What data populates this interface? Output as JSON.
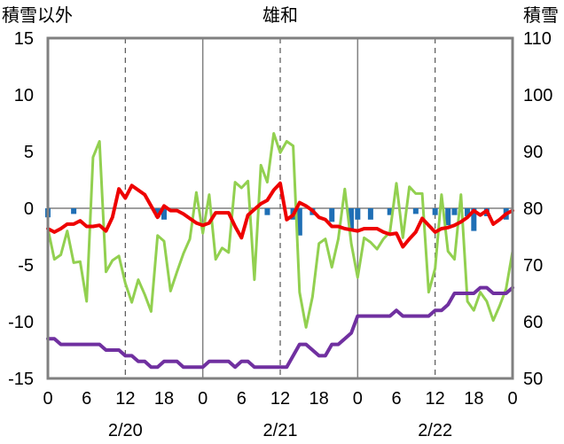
{
  "chart_data": {
    "type": "line",
    "title": "雄和",
    "ylabel": "積雪以外",
    "y2label": "積雪",
    "ylim": [
      -15,
      15
    ],
    "y2lim": [
      50,
      110
    ],
    "yticks": [
      15,
      10,
      5,
      0,
      -5,
      -10,
      -15
    ],
    "y2ticks": [
      110,
      100,
      90,
      80,
      70,
      60,
      50
    ],
    "x_tick_labels": [
      "0",
      "6",
      "12",
      "18",
      "0",
      "6",
      "12",
      "18",
      "0",
      "6",
      "12",
      "18",
      "0"
    ],
    "date_labels": [
      "2/20",
      "2/21",
      "2/22"
    ],
    "grid": "vertical",
    "frame_color": "#808080",
    "series": [
      {
        "type": "bar",
        "axis": "left",
        "color": "#1f6fb5",
        "values": [
          -0.8,
          0,
          0,
          0,
          -0.5,
          0,
          0,
          0,
          0,
          0,
          0,
          0,
          0,
          0,
          0,
          0,
          0,
          -0.8,
          -1.0,
          0,
          0,
          0,
          0,
          0,
          0,
          0,
          0,
          0,
          0,
          0,
          0,
          0,
          0,
          0,
          -0.6,
          0,
          0,
          0,
          -1.0,
          -2.4,
          0,
          -0.6,
          0,
          0,
          -1.2,
          0,
          0,
          -1.8,
          -1.0,
          0,
          -1.0,
          0,
          0,
          -0.6,
          0,
          0,
          0,
          -0.5,
          0,
          0,
          -0.6,
          0,
          -1.5,
          -0.6,
          0,
          -0.7,
          -2.0,
          0,
          -0.7,
          0,
          0,
          -1.0,
          0
        ]
      },
      {
        "type": "line",
        "axis": "left",
        "color": "#92d050",
        "values": [
          -1.8,
          -4.5,
          -4.1,
          -2.0,
          -4.8,
          -4.7,
          -8.2,
          4.5,
          5.9,
          -5.6,
          -4.6,
          -4.2,
          -6.6,
          -8.3,
          -6.3,
          -7.6,
          -9.1,
          -2.4,
          -2.9,
          -7.3,
          -5.6,
          -4.0,
          -2.7,
          1.4,
          -2.2,
          1.2,
          -4.5,
          -3.5,
          -3.9,
          2.3,
          1.8,
          2.4,
          -6.3,
          3.8,
          2.3,
          6.6,
          4.9,
          5.9,
          5.5,
          -7.4,
          -10.5,
          -7.8,
          -3.1,
          -2.7,
          -5.2,
          -2.7,
          1.7,
          -3.1,
          -6.1,
          -2.6,
          -3.0,
          -3.6,
          -2.7,
          -2.1,
          2.2,
          -2.6,
          1.9,
          1.3,
          1.3,
          -7.4,
          -5.3,
          1.2,
          -3.8,
          -4.5,
          1.2,
          -8.2,
          -9.0,
          -7.4,
          -8.2,
          -9.9,
          -8.6,
          -7.1,
          -3.8
        ]
      },
      {
        "type": "line",
        "axis": "left",
        "color": "#ee0000",
        "values": [
          -1.8,
          -2.1,
          -1.8,
          -1.4,
          -1.4,
          -1.1,
          -1.6,
          -1.6,
          -1.5,
          -2.0,
          -0.8,
          1.7,
          0.9,
          2.0,
          1.6,
          1.2,
          0.2,
          -0.8,
          0.2,
          -0.2,
          -0.2,
          -0.5,
          -0.9,
          -1.3,
          -1.5,
          -1.3,
          -0.4,
          -0.4,
          -0.4,
          -1.6,
          -2.6,
          -0.6,
          -0.1,
          0.4,
          0.7,
          1.6,
          2.2,
          -1.0,
          -0.6,
          0.5,
          0.2,
          -0.2,
          -0.8,
          -1.0,
          -1.6,
          -1.6,
          -1.8,
          -1.9,
          -2.0,
          -1.8,
          -1.8,
          -1.8,
          -2.1,
          -2.3,
          -2.2,
          -3.4,
          -2.7,
          -2.1,
          -0.9,
          -1.5,
          -2.1,
          -1.8,
          -1.7,
          -1.5,
          -1.2,
          -0.8,
          -0.2,
          -0.6,
          -0.2,
          -1.4,
          -1.0,
          -0.5,
          -0.2
        ]
      },
      {
        "type": "line",
        "axis": "right",
        "color": "#7030a0",
        "values": [
          57,
          57,
          56,
          56,
          56,
          56,
          56,
          56,
          56,
          55,
          55,
          55,
          54,
          54,
          53,
          53,
          52,
          52,
          53,
          53,
          53,
          52,
          52,
          52,
          52,
          53,
          53,
          53,
          53,
          52,
          53,
          53,
          52,
          52,
          52,
          52,
          52,
          52,
          54,
          56,
          56,
          55,
          54,
          54,
          56,
          56,
          57,
          58,
          61,
          61,
          61,
          61,
          61,
          61,
          62,
          61,
          61,
          61,
          61,
          61,
          62,
          62,
          63,
          65,
          65,
          65,
          65,
          66,
          66,
          65,
          65,
          65,
          66
        ]
      }
    ]
  }
}
